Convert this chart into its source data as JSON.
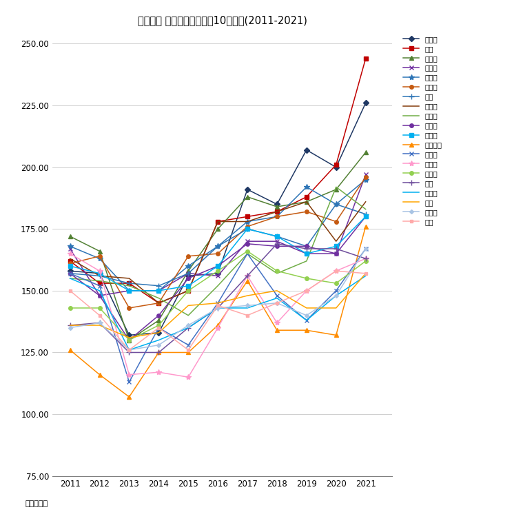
{
  "title": "江戸川区 マンション坪単価10年変遷(2011-2021)",
  "years": [
    2011,
    2012,
    2013,
    2014,
    2015,
    2016,
    2017,
    2018,
    2019,
    2020,
    2021
  ],
  "ylabel": "単位：万円",
  "ylim": [
    75,
    255
  ],
  "yticks": [
    75.0,
    100.0,
    125.0,
    150.0,
    175.0,
    200.0,
    225.0,
    250.0
  ],
  "series": [
    {
      "name": "南小岩",
      "color": "#1F3864",
      "marker": "D",
      "markersize": 4,
      "values": [
        158,
        157,
        132,
        133,
        156,
        157,
        191,
        185,
        207,
        200,
        226
      ]
    },
    {
      "name": "船堀",
      "color": "#C00000",
      "marker": "s",
      "markersize": 4,
      "values": [
        162,
        153,
        153,
        145,
        150,
        178,
        180,
        182,
        188,
        201,
        244
      ]
    },
    {
      "name": "西葛西",
      "color": "#538135",
      "marker": "^",
      "markersize": 4,
      "values": [
        172,
        166,
        130,
        138,
        158,
        175,
        188,
        184,
        186,
        191,
        206
      ]
    },
    {
      "name": "篠崎町",
      "color": "#7030A0",
      "marker": "x",
      "markersize": 5,
      "values": [
        167,
        148,
        150,
        150,
        157,
        156,
        170,
        170,
        165,
        165,
        197
      ]
    },
    {
      "name": "東葛西",
      "color": "#2E75B6",
      "marker": "*",
      "markersize": 6,
      "values": [
        168,
        163,
        150,
        150,
        160,
        168,
        178,
        180,
        192,
        185,
        195
      ]
    },
    {
      "name": "西小岩",
      "color": "#C55A11",
      "marker": "o",
      "markersize": 4,
      "values": [
        161,
        164,
        143,
        145,
        164,
        165,
        176,
        180,
        182,
        178,
        196
      ]
    },
    {
      "name": "平井",
      "color": "#2E75B6",
      "marker": "+",
      "markersize": 6,
      "values": [
        157,
        156,
        153,
        152,
        157,
        168,
        175,
        172,
        168,
        185,
        181
      ]
    },
    {
      "name": "中葛西",
      "color": "#843C0C",
      "marker": "None",
      "markersize": 4,
      "values": [
        163,
        156,
        155,
        145,
        150,
        178,
        178,
        182,
        186,
        170,
        186
      ]
    },
    {
      "name": "一之江",
      "color": "#70AD47",
      "marker": "None",
      "markersize": 4,
      "values": [
        155,
        154,
        152,
        147,
        140,
        152,
        165,
        157,
        162,
        192,
        183
      ]
    },
    {
      "name": "小松川",
      "color": "#7030A0",
      "marker": "o",
      "markersize": 4,
      "values": [
        157,
        148,
        130,
        140,
        155,
        160,
        169,
        168,
        168,
        165,
        180
      ]
    },
    {
      "name": "北葛西",
      "color": "#00B0F0",
      "marker": "s",
      "markersize": 4,
      "values": [
        160,
        157,
        150,
        150,
        152,
        160,
        175,
        172,
        165,
        168,
        180
      ]
    },
    {
      "name": "南篠崎町",
      "color": "#FF8C00",
      "marker": "^",
      "markersize": 4,
      "values": [
        126,
        116,
        107,
        125,
        125,
        136,
        154,
        134,
        134,
        132,
        176
      ]
    },
    {
      "name": "清新町",
      "color": "#4472C4",
      "marker": "x",
      "markersize": 5,
      "values": [
        157,
        152,
        113,
        135,
        128,
        145,
        165,
        148,
        138,
        150,
        167
      ]
    },
    {
      "name": "東小岩",
      "color": "#FF99CC",
      "marker": "*",
      "markersize": 6,
      "values": [
        165,
        158,
        116,
        117,
        115,
        135,
        156,
        137,
        150,
        158,
        163
      ]
    },
    {
      "name": "南葛西",
      "color": "#92D050",
      "marker": "o",
      "markersize": 4,
      "values": [
        143,
        143,
        130,
        136,
        150,
        158,
        166,
        158,
        155,
        153,
        162
      ]
    },
    {
      "name": "松島",
      "color": "#6F4E9C",
      "marker": "+",
      "markersize": 6,
      "values": [
        136,
        137,
        125,
        125,
        135,
        143,
        156,
        169,
        167,
        167,
        163
      ]
    },
    {
      "name": "北小岩",
      "color": "#00B0F0",
      "marker": "None",
      "markersize": 4,
      "values": [
        155,
        150,
        126,
        130,
        135,
        143,
        143,
        147,
        138,
        148,
        156
      ]
    },
    {
      "name": "中央",
      "color": "#FFA500",
      "marker": "None",
      "markersize": 4,
      "values": [
        136,
        136,
        131,
        133,
        144,
        145,
        148,
        150,
        143,
        143,
        157
      ]
    },
    {
      "name": "江戸川",
      "color": "#A9C4E4",
      "marker": "D",
      "markersize": 3,
      "values": [
        135,
        137,
        126,
        128,
        136,
        143,
        144,
        145,
        140,
        148,
        167
      ]
    },
    {
      "name": "松江",
      "color": "#FFAAAA",
      "marker": "s",
      "markersize": 3,
      "values": [
        150,
        140,
        126,
        135,
        126,
        144,
        140,
        145,
        150,
        158,
        157
      ]
    }
  ]
}
